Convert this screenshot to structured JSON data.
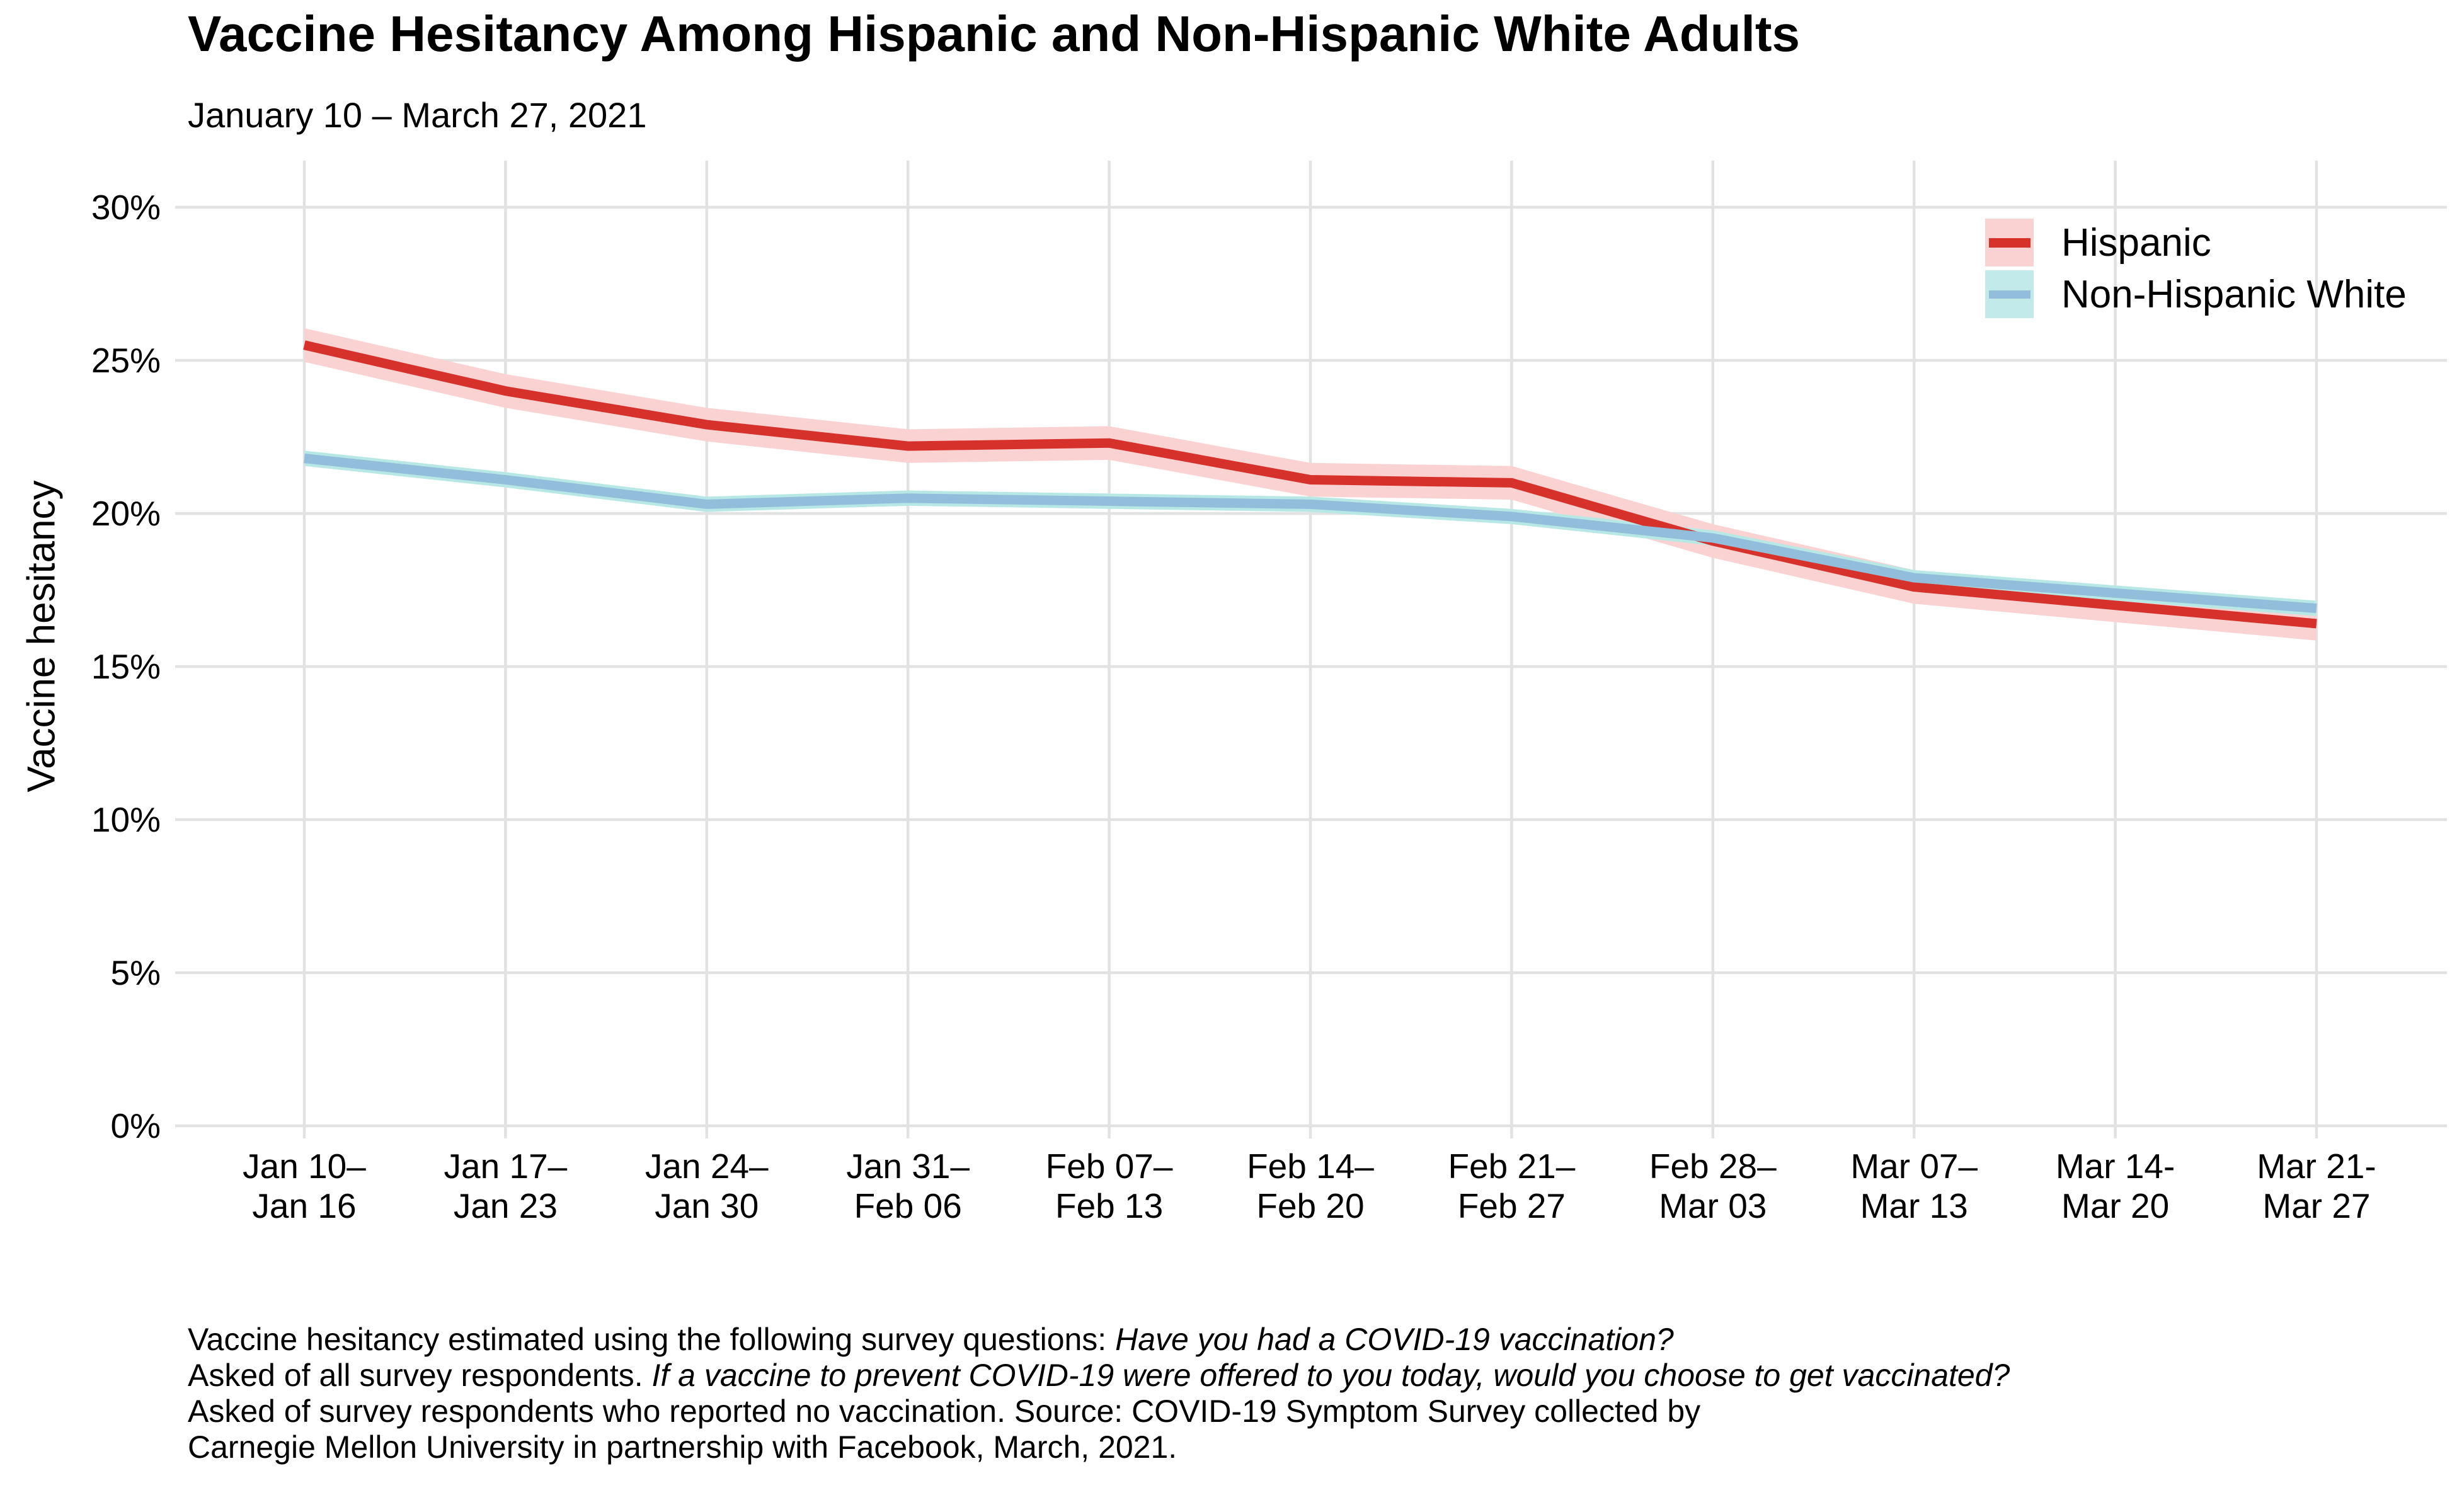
{
  "chart_data": {
    "type": "line",
    "title": "Vaccine Hesitancy Among Hispanic and Non-Hispanic White Adults",
    "subtitle": "January 10 – March 27, 2021",
    "ylabel": "Vaccine hesitancy",
    "xlabel": "",
    "grid": true,
    "legend_position": "top-right-inside",
    "ylim": [
      0,
      31.5
    ],
    "y_tick_values": [
      0,
      5,
      10,
      15,
      20,
      25,
      30
    ],
    "y_tick_labels": [
      "0%",
      "5%",
      "10%",
      "15%",
      "20%",
      "25%",
      "30%"
    ],
    "categories": [
      "Jan 10–Jan 16",
      "Jan 17–Jan 23",
      "Jan 24–Jan 30",
      "Jan 31–Feb 06",
      "Feb 07–Feb 13",
      "Feb 14–Feb 20",
      "Feb 21–Feb 27",
      "Feb 28–Mar 03",
      "Mar 07–Mar 13",
      "Mar 14-Mar 20",
      "Mar 21-Mar 27"
    ],
    "x_tick_labels": [
      [
        "Jan 10–",
        "Jan 16"
      ],
      [
        "Jan 17–",
        "Jan 23"
      ],
      [
        "Jan 24–",
        "Jan 30"
      ],
      [
        "Jan 31–",
        "Feb 06"
      ],
      [
        "Feb 07–",
        "Feb 13"
      ],
      [
        "Feb 14–",
        "Feb 20"
      ],
      [
        "Feb 21–",
        "Feb 27"
      ],
      [
        "Feb 28–",
        "Mar 03"
      ],
      [
        "Mar 07–",
        "Mar 13"
      ],
      [
        "Mar 14-",
        "Mar 20"
      ],
      [
        "Mar 21-",
        "Mar 27"
      ]
    ],
    "series": [
      {
        "name": "Hispanic",
        "color": "#d6312b",
        "band_color": "#fbd2d2",
        "legend_fill": "#fbd2d2",
        "ci_halfwidth": 0.55,
        "values": [
          25.5,
          24.0,
          22.9,
          22.2,
          22.3,
          21.1,
          21.0,
          19.1,
          17.6,
          17.0,
          16.4
        ]
      },
      {
        "name": "Non-Hispanic White",
        "color": "#92bedb",
        "band_color": "#b8e8e6",
        "legend_fill": "#c2eaea",
        "ci_halfwidth": 0.25,
        "values": [
          21.8,
          21.1,
          20.3,
          20.5,
          20.4,
          20.3,
          19.9,
          19.2,
          17.9,
          17.4,
          16.9
        ]
      }
    ]
  },
  "caption": {
    "line1_regular": "Vaccine hesitancy estimated using the following survey questions: ",
    "line1_italic": "Have you had a COVID-19 vaccination?",
    "line2_regular": "Asked of all survey respondents. ",
    "line2_italic": "If a vaccine to prevent COVID-19 were offered to you today, would you choose to get vaccinated?",
    "line3": "Asked of survey respondents who reported no vaccination. Source: COVID-19 Symptom Survey collected by",
    "line4": "Carnegie Mellon University in partnership with Facebook, March, 2021."
  }
}
